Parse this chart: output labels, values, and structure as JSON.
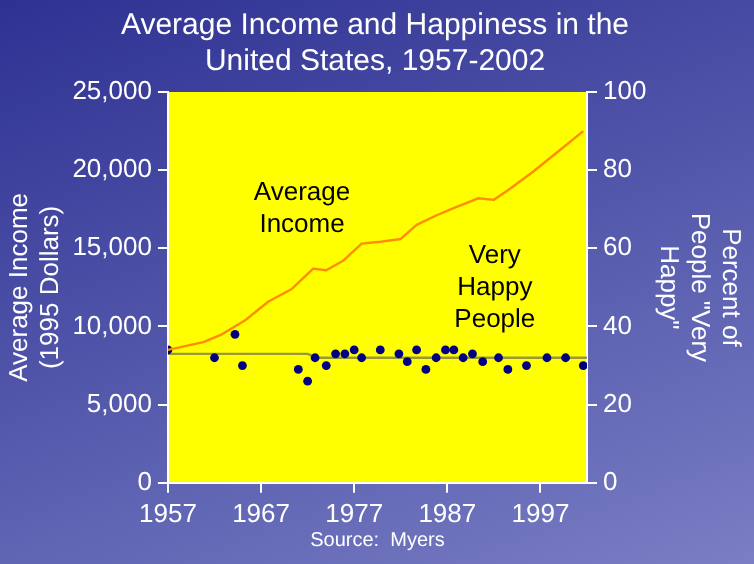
{
  "chart_data": {
    "type": "line",
    "title": "Average Income and Happiness in the United States, 1957-2002",
    "ylabel": "Average Income (1995 Dollars)",
    "y2label": "Percent of People \"Very Happy\"",
    "annotations": [
      "Source:  Myers"
    ],
    "xlim": [
      1957,
      2002
    ],
    "xticks": [
      1957,
      1967,
      1977,
      1987,
      1997
    ],
    "ylim": [
      0,
      25000
    ],
    "yticks": [
      {
        "value": 0,
        "label": "0"
      },
      {
        "value": 5000,
        "label": "5,000"
      },
      {
        "value": 10000,
        "label": "10,000"
      },
      {
        "value": 15000,
        "label": "15,000"
      },
      {
        "value": 20000,
        "label": "20,000"
      },
      {
        "value": 25000,
        "label": "25,000"
      }
    ],
    "y2lim": [
      0,
      100
    ],
    "y2ticks": [
      0,
      20,
      40,
      60,
      80,
      100
    ],
    "grid": false,
    "legend": false,
    "series": [
      {
        "name": "Average Income",
        "marker": "none",
        "color": "#ff8c00",
        "x": [
          1957,
          1960.8,
          1962.8,
          1965.3,
          1967.8,
          1970.3,
          1972.6,
          1974,
          1975.8,
          1977.8,
          1979.5,
          1982,
          1983.7,
          1985.8,
          1987.8,
          1990.3,
          1992,
          1993.7,
          1996.2,
          1998.7,
          2001.6
        ],
        "values": [
          8500,
          9000,
          9500,
          10400,
          11600,
          12400,
          13700,
          13600,
          14200,
          15300,
          15400,
          15600,
          16500,
          17100,
          17600,
          18200,
          18100,
          18800,
          19900,
          21100,
          22500
        ]
      },
      {
        "name": "Very Happy People",
        "type": "scatter",
        "axis": "y2",
        "marker": "circle",
        "color": "#000080",
        "x": [
          1957,
          1962,
          1964.2,
          1965,
          1971,
          1972,
          1972.8,
          1974,
          1975,
          1976,
          1977,
          1977.8,
          1979.8,
          1981.8,
          1982.7,
          1983.7,
          1984.7,
          1985.8,
          1986.8,
          1987.7,
          1988.7,
          1989.7,
          1990.8,
          1992.5,
          1993.5,
          1995.5,
          1997.7,
          1999.7,
          2001.6
        ],
        "values": [
          34,
          32,
          38,
          30,
          29,
          26,
          32,
          30,
          33,
          33,
          34,
          32,
          34,
          33,
          31,
          34,
          29,
          32,
          34,
          34,
          32,
          33,
          31,
          32,
          29,
          30,
          32,
          32,
          30
        ]
      },
      {
        "axis": "y2",
        "marker": "none",
        "color": "#999933",
        "x": [
          1957,
          1972,
          1973,
          2002
        ],
        "values": [
          33,
          33,
          32,
          32
        ]
      }
    ]
  }
}
